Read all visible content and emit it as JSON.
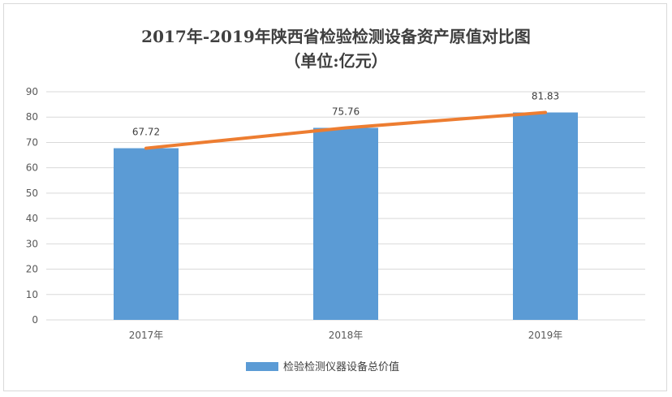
{
  "chart_data": {
    "type": "bar",
    "title": "2017年-2019年陕西省检验检测设备资产原值对比图",
    "subtitle": "（单位:亿元）",
    "categories": [
      "2017年",
      "2018年",
      "2019年"
    ],
    "series": [
      {
        "name": "检验检测仪器设备总价值",
        "values": [
          67.72,
          75.76,
          81.83
        ],
        "color": "#5b9bd5",
        "kind": "bar"
      },
      {
        "values": [
          67.72,
          75.76,
          81.83
        ],
        "color": "#ed7d31",
        "kind": "line"
      }
    ],
    "data_labels": [
      "67.72",
      "75.76",
      "81.83"
    ],
    "y_ticks": [
      0,
      10,
      20,
      30,
      40,
      50,
      60,
      70,
      80,
      90
    ],
    "ylim": [
      0,
      90
    ],
    "xlabel": "",
    "ylabel": "",
    "grid": true,
    "legend_position": "bottom",
    "gridline_color": "#d9d9d9"
  }
}
